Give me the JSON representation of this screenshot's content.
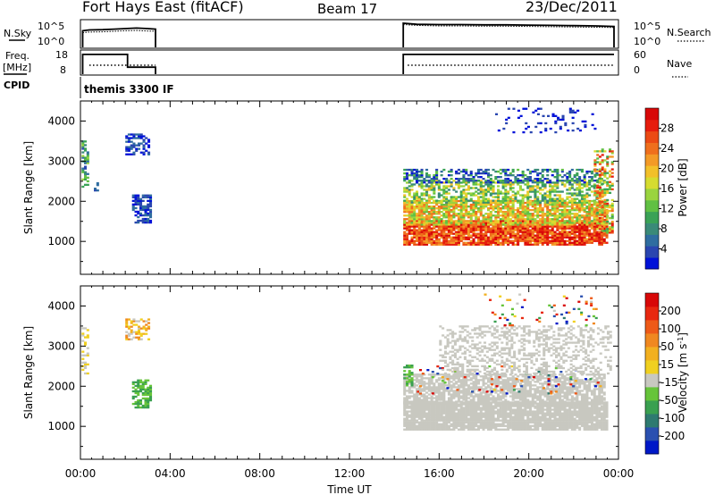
{
  "header": {
    "station": "Fort Hays East (fitACF)",
    "beam": "Beam 17",
    "date": "23/Dec/2011"
  },
  "panel_labels": {
    "nsky": "N.Sky",
    "freq_line1": "Freq.",
    "freq_line2": "[MHz]",
    "cpid": "CPID",
    "nsearch": "N.Search",
    "nave": "Nave",
    "cpid_value": "themis 3300 IF"
  },
  "colors": {
    "frame": "#000000",
    "ground_scatter": "#c8c8c0"
  },
  "chart_data": [
    {
      "type": "line",
      "name": "noise",
      "ylabel_left": "N.Sky",
      "ylabel_right": "N.Search",
      "y_ticks_left": [
        "10^5",
        "10^0"
      ],
      "y_ticks_right": [
        "10^5",
        "10^0"
      ],
      "segments": [
        {
          "x_hours": [
            0.1,
            0.4,
            1.0,
            1.5,
            2.0,
            2.5,
            3.0,
            3.35
          ],
          "sky": [
            0.62,
            0.65,
            0.66,
            0.68,
            0.7,
            0.72,
            0.7,
            0.68
          ],
          "search": [
            0.55,
            0.57,
            0.58,
            0.6,
            0.62,
            0.63,
            0.61,
            0.6
          ]
        },
        {
          "x_hours": [
            14.4,
            15.0,
            16.0,
            17.0,
            18.0,
            19.0,
            20.0,
            21.0,
            22.0,
            23.0,
            23.8
          ],
          "sky": [
            0.9,
            0.86,
            0.85,
            0.85,
            0.84,
            0.84,
            0.83,
            0.82,
            0.81,
            0.8,
            0.78
          ],
          "search": [
            0.85,
            0.82,
            0.8,
            0.8,
            0.79,
            0.79,
            0.78,
            0.77,
            0.76,
            0.75,
            0.74
          ]
        }
      ]
    },
    {
      "type": "line",
      "name": "frequency-nave",
      "ylabel_left": "Freq. [MHz]",
      "ylabel_right": "Nave",
      "y_ticks_left": [
        "18",
        "8"
      ],
      "y_ticks_right": [
        "60",
        "0"
      ],
      "ylim_left": [
        8,
        18
      ],
      "ylim_right": [
        0,
        60
      ],
      "freq_segments": [
        {
          "x_hours": [
            0.1,
            0.1,
            2.1,
            2.1,
            3.35,
            3.35
          ],
          "mhz": [
            8,
            16.5,
            16.5,
            11,
            11,
            8
          ]
        },
        {
          "x_hours": [
            14.4,
            14.4,
            23.8
          ],
          "mhz": [
            8,
            16.5,
            16.5
          ]
        }
      ],
      "nave_segments": [
        {
          "x_hours": [
            0.4,
            2.1
          ],
          "nave": [
            23,
            23
          ]
        },
        {
          "x_hours": [
            2.2,
            3.35
          ],
          "nave": [
            23,
            23
          ]
        },
        {
          "x_hours": [
            14.6,
            23.8
          ],
          "nave": [
            23,
            23
          ]
        }
      ]
    },
    {
      "type": "heatmap",
      "name": "power",
      "ylabel": "Slant Range [km]",
      "y_ticks": [
        "1000",
        "2000",
        "3000",
        "4000"
      ],
      "ylim": [
        180,
        4500
      ],
      "colorbar": {
        "label": "Power [dB]",
        "tick_labels": [
          "4",
          "8",
          "12",
          "16",
          "20",
          "24",
          "28"
        ],
        "colors": [
          "#0012d8",
          "#2a46b0",
          "#2f6da0",
          "#3a8a78",
          "#3aa256",
          "#60c043",
          "#9ad43f",
          "#d6dc30",
          "#f2c02a",
          "#f39a27",
          "#ef6f1d",
          "#eb4a14",
          "#e61d0d",
          "#d80808"
        ]
      },
      "regions": [
        {
          "t": [
            0.05,
            0.35
          ],
          "r": [
            2300,
            3500
          ],
          "level": [
            1,
            6
          ],
          "density": 0.55
        },
        {
          "t": [
            0.6,
            0.75
          ],
          "r": [
            2250,
            2450
          ],
          "level": [
            1,
            2
          ],
          "density": 0.6
        },
        {
          "t": [
            2.0,
            3.0
          ],
          "r": [
            3150,
            3650
          ],
          "level": [
            0,
            2
          ],
          "density": 0.55
        },
        {
          "t": [
            2.3,
            3.1
          ],
          "r": [
            1450,
            2150
          ],
          "level": [
            0,
            2
          ],
          "density": 0.6
        },
        {
          "t": [
            14.4,
            23.5
          ],
          "r": [
            900,
            1500
          ],
          "level": [
            9,
            13
          ],
          "density": 0.9
        },
        {
          "t": [
            14.4,
            23.5
          ],
          "r": [
            1400,
            2000
          ],
          "level": [
            5,
            10
          ],
          "density": 0.8
        },
        {
          "t": [
            14.4,
            23.4
          ],
          "r": [
            1950,
            2500
          ],
          "level": [
            3,
            8
          ],
          "density": 0.55
        },
        {
          "t": [
            14.4,
            23.2
          ],
          "r": [
            2450,
            2800
          ],
          "level": [
            0,
            5
          ],
          "density": 0.45
        },
        {
          "t": [
            22.9,
            23.7
          ],
          "r": [
            1200,
            3300
          ],
          "level": [
            4,
            12
          ],
          "density": 0.55
        },
        {
          "t": [
            18.5,
            23.0
          ],
          "r": [
            3700,
            4300
          ],
          "level": [
            0,
            1
          ],
          "density": 0.12
        }
      ]
    },
    {
      "type": "heatmap",
      "name": "velocity",
      "ylabel": "Slant Range [km]",
      "y_ticks": [
        "1000",
        "2000",
        "3000",
        "4000"
      ],
      "ylim": [
        180,
        4500
      ],
      "colorbar": {
        "label": "Velocity [m s-1]",
        "tick_labels": [
          "200",
          "100",
          "50",
          "15",
          "-15",
          "-50",
          "-100",
          "-200"
        ],
        "colors": [
          "#0018c8",
          "#2a50b0",
          "#2e7a70",
          "#3aa050",
          "#66c43a",
          "#c8c8c0",
          "#f0d020",
          "#f2b020",
          "#f08820",
          "#ee5a18",
          "#e82810",
          "#d80808"
        ]
      },
      "x_ticks": [
        "00:00",
        "04:00",
        "08:00",
        "12:00",
        "16:00",
        "20:00",
        "00:00"
      ],
      "xlabel": "Time UT",
      "regions": [
        {
          "t": [
            0.05,
            0.35
          ],
          "r": [
            2300,
            3500
          ],
          "level": [
            5,
            6
          ],
          "density": 0.35
        },
        {
          "t": [
            2.0,
            3.0
          ],
          "r": [
            3150,
            3650
          ],
          "level": [
            5,
            8
          ],
          "density": 0.5
        },
        {
          "t": [
            2.3,
            3.1
          ],
          "r": [
            1450,
            2150
          ],
          "level": [
            3,
            4
          ],
          "density": 0.65
        },
        {
          "t": [
            14.4,
            23.5
          ],
          "r": [
            900,
            1600
          ],
          "level": [
            5,
            5
          ],
          "density": 0.92
        },
        {
          "t": [
            14.4,
            23.4
          ],
          "r": [
            1550,
            2300
          ],
          "level": [
            5,
            5
          ],
          "density": 0.75
        },
        {
          "t": [
            15.0,
            23.2
          ],
          "r": [
            1800,
            2500
          ],
          "level": [
            0,
            11
          ],
          "density": 0.08
        },
        {
          "t": [
            16.0,
            23.6
          ],
          "r": [
            2300,
            3500
          ],
          "level": [
            5,
            5
          ],
          "density": 0.35
        },
        {
          "t": [
            14.4,
            14.8
          ],
          "r": [
            2000,
            2600
          ],
          "level": [
            3,
            4
          ],
          "density": 0.5
        },
        {
          "t": [
            18.0,
            23.0
          ],
          "r": [
            3500,
            4300
          ],
          "level": [
            0,
            11
          ],
          "density": 0.06
        }
      ]
    }
  ]
}
